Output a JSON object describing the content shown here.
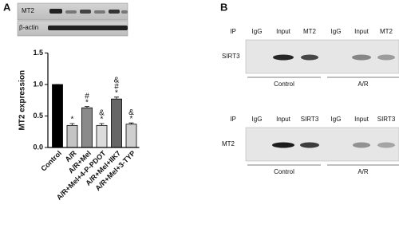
{
  "panel_a": {
    "label": "A",
    "blot_labels": [
      "MT2",
      "β-actin"
    ]
  },
  "chart_data": {
    "type": "bar",
    "y_label": "MT2 expression",
    "categories": [
      "Control",
      "A/R",
      "A/R+Mel",
      "A/R+Mel+4-P-PDOT",
      "A/R+Mel+IIK7",
      "A/R+Mel+3-TYP"
    ],
    "values": [
      1.0,
      0.35,
      0.63,
      0.35,
      0.77,
      0.37
    ],
    "errors": [
      0,
      0.03,
      0.02,
      0.03,
      0.03,
      0.02
    ],
    "colors": [
      "#000000",
      "#c4c4c4",
      "#8a8a8a",
      "#dcdcdc",
      "#666666",
      "#cfcfcf"
    ],
    "annotations": [
      null,
      [
        "*"
      ],
      [
        "#",
        "*"
      ],
      [
        "&",
        "*"
      ],
      [
        "&",
        "#",
        "*"
      ],
      [
        "&",
        "*"
      ]
    ],
    "ylim": [
      0,
      1.5
    ],
    "yticks": [
      {
        "value": 0,
        "label": "0.0"
      },
      {
        "value": 0.5,
        "label": "0.5"
      },
      {
        "value": 1,
        "label": "1.0"
      },
      {
        "value": 1.5,
        "label": "1.5"
      }
    ]
  },
  "panel_b": {
    "label": "B",
    "blots": [
      {
        "ip_label": "IP",
        "columns": [
          "IgG",
          "Input",
          "MT2",
          "IgG",
          "Input",
          "MT2"
        ],
        "row_label": "SIRT3",
        "groups": [
          "Control",
          "A/R"
        ]
      },
      {
        "ip_label": "IP",
        "columns": [
          "IgG",
          "Input",
          "SIRT3",
          "IgG",
          "Input",
          "SIRT3"
        ],
        "row_label": "MT2",
        "groups": [
          "Control",
          "A/R"
        ]
      }
    ]
  }
}
